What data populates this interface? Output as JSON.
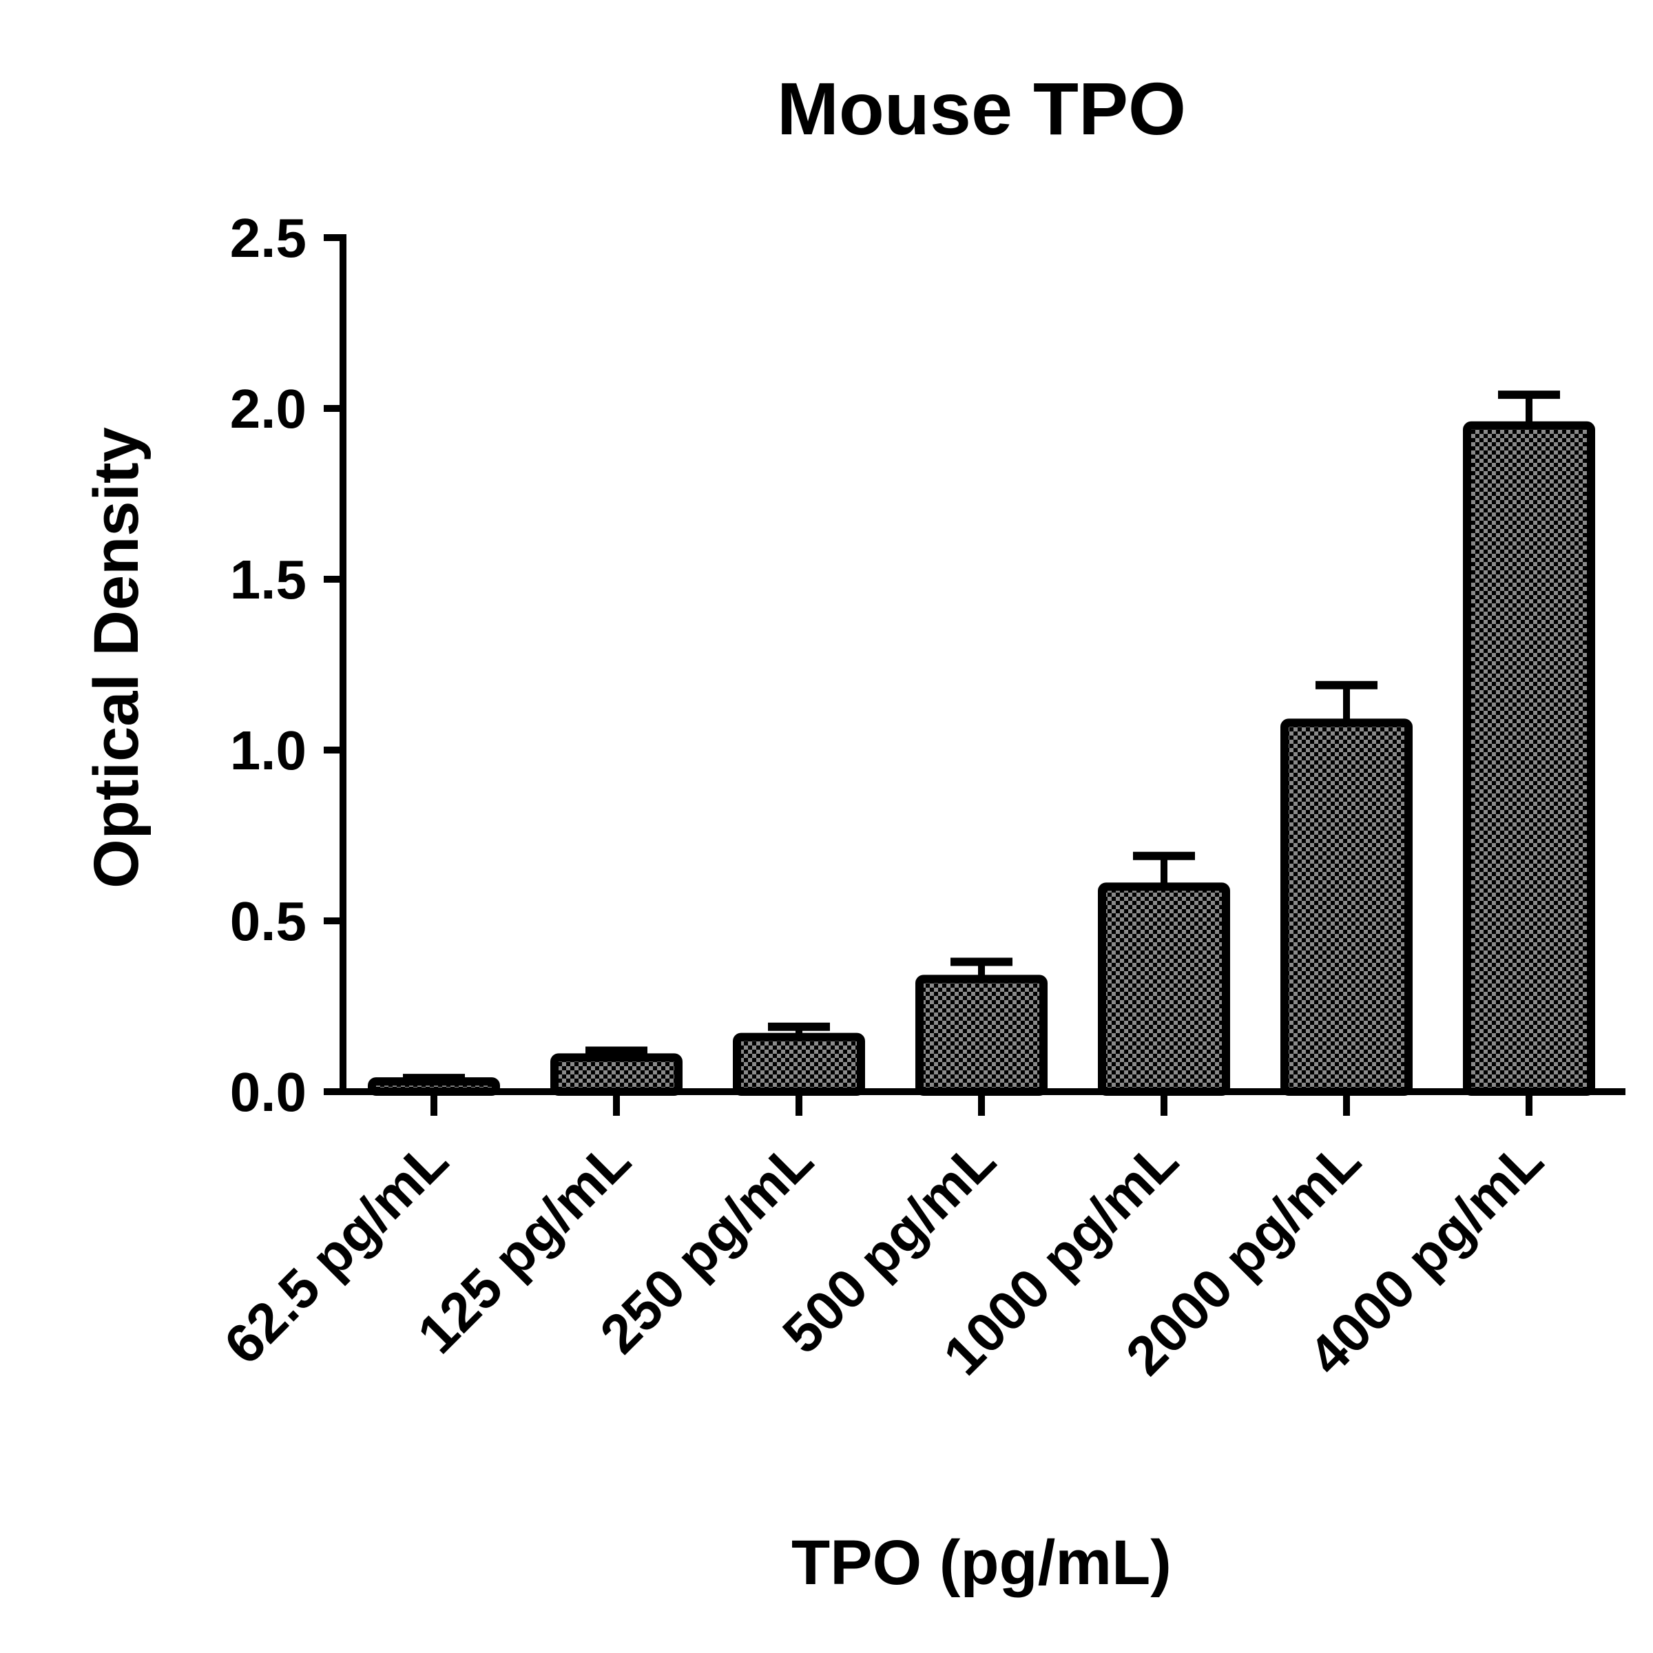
{
  "chart_data": {
    "type": "bar",
    "title": "Mouse TPO",
    "xlabel": "TPO (pg/mL)",
    "ylabel": "Optical Density",
    "categories": [
      "62.5 pg/mL",
      "125 pg/mL",
      "250 pg/mL",
      "500 pg/mL",
      "1000 pg/mL",
      "2000 pg/mL",
      "4000 pg/mL"
    ],
    "values": [
      0.03,
      0.1,
      0.16,
      0.33,
      0.6,
      1.08,
      1.95
    ],
    "error_upper": [
      0.01,
      0.02,
      0.03,
      0.05,
      0.09,
      0.11,
      0.09
    ],
    "ylim": [
      0,
      2.5
    ],
    "yticks": [
      "0.0",
      "0.5",
      "1.0",
      "1.5",
      "2.0",
      "2.5"
    ],
    "grid": false,
    "legend": "none",
    "bar_fill": "#8a8a8a",
    "bar_pattern_color": "#000000",
    "bar_edge": "#000000"
  }
}
